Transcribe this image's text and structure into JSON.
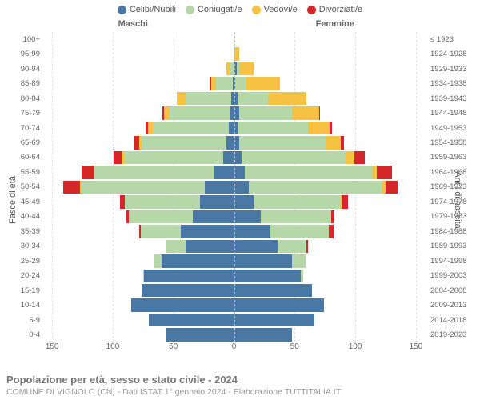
{
  "legend": [
    {
      "label": "Celibi/Nubili",
      "color": "#4a78a5"
    },
    {
      "label": "Coniugati/e",
      "color": "#b6d7a8"
    },
    {
      "label": "Vedovi/e",
      "color": "#f6c244"
    },
    {
      "label": "Divorziati/e",
      "color": "#d62728"
    }
  ],
  "headers": {
    "left": "Maschi",
    "right": "Femmine"
  },
  "axis_titles": {
    "left": "Fasce di età",
    "right": "Anni di nascita"
  },
  "x_axis": {
    "min_abs": 0,
    "max_abs": 160,
    "ticks": [
      150,
      100,
      50,
      0,
      50,
      100,
      150
    ]
  },
  "colors": {
    "celibi": "#4a78a5",
    "coniugati": "#b6d7a8",
    "vedovi": "#f6c244",
    "divorziati": "#d62728",
    "grid": "#e3e3e3",
    "center": "#bbbbbb",
    "bg": "#ffffff"
  },
  "rows": [
    {
      "age": "100+",
      "birth": "≤ 1923",
      "m": {
        "c": 0,
        "co": 0,
        "v": 0,
        "d": 0
      },
      "f": {
        "c": 0,
        "co": 0,
        "v": 0,
        "d": 0
      }
    },
    {
      "age": "95-99",
      "birth": "1924-1928",
      "m": {
        "c": 0,
        "co": 0,
        "v": 0,
        "d": 0
      },
      "f": {
        "c": 0,
        "co": 0,
        "v": 4,
        "d": 0
      }
    },
    {
      "age": "90-94",
      "birth": "1929-1933",
      "m": {
        "c": 0,
        "co": 3,
        "v": 3,
        "d": 0
      },
      "f": {
        "c": 2,
        "co": 2,
        "v": 12,
        "d": 0
      }
    },
    {
      "age": "85-89",
      "birth": "1934-1938",
      "m": {
        "c": 1,
        "co": 14,
        "v": 4,
        "d": 1
      },
      "f": {
        "c": 1,
        "co": 9,
        "v": 28,
        "d": 0
      }
    },
    {
      "age": "80-84",
      "birth": "1939-1943",
      "m": {
        "c": 2,
        "co": 38,
        "v": 7,
        "d": 0
      },
      "f": {
        "c": 3,
        "co": 25,
        "v": 32,
        "d": 0
      }
    },
    {
      "age": "75-79",
      "birth": "1944-1948",
      "m": {
        "c": 3,
        "co": 50,
        "v": 5,
        "d": 1
      },
      "f": {
        "c": 4,
        "co": 44,
        "v": 22,
        "d": 1
      }
    },
    {
      "age": "70-74",
      "birth": "1949-1953",
      "m": {
        "c": 4,
        "co": 63,
        "v": 4,
        "d": 2
      },
      "f": {
        "c": 3,
        "co": 58,
        "v": 18,
        "d": 2
      }
    },
    {
      "age": "65-69",
      "birth": "1954-1958",
      "m": {
        "c": 6,
        "co": 70,
        "v": 2,
        "d": 4
      },
      "f": {
        "c": 4,
        "co": 72,
        "v": 12,
        "d": 3
      }
    },
    {
      "age": "60-64",
      "birth": "1959-1963",
      "m": {
        "c": 9,
        "co": 82,
        "v": 2,
        "d": 6
      },
      "f": {
        "c": 6,
        "co": 86,
        "v": 7,
        "d": 9
      }
    },
    {
      "age": "55-59",
      "birth": "1964-1968",
      "m": {
        "c": 17,
        "co": 98,
        "v": 1,
        "d": 10
      },
      "f": {
        "c": 9,
        "co": 105,
        "v": 4,
        "d": 12
      }
    },
    {
      "age": "50-54",
      "birth": "1969-1973",
      "m": {
        "c": 24,
        "co": 102,
        "v": 1,
        "d": 14
      },
      "f": {
        "c": 12,
        "co": 110,
        "v": 3,
        "d": 10
      }
    },
    {
      "age": "45-49",
      "birth": "1974-1978",
      "m": {
        "c": 28,
        "co": 62,
        "v": 0,
        "d": 4
      },
      "f": {
        "c": 16,
        "co": 72,
        "v": 1,
        "d": 5
      }
    },
    {
      "age": "40-44",
      "birth": "1979-1983",
      "m": {
        "c": 34,
        "co": 53,
        "v": 0,
        "d": 2
      },
      "f": {
        "c": 22,
        "co": 58,
        "v": 0,
        "d": 3
      }
    },
    {
      "age": "35-39",
      "birth": "1984-1988",
      "m": {
        "c": 44,
        "co": 33,
        "v": 0,
        "d": 1
      },
      "f": {
        "c": 30,
        "co": 48,
        "v": 0,
        "d": 4
      }
    },
    {
      "age": "30-34",
      "birth": "1989-1993",
      "m": {
        "c": 40,
        "co": 16,
        "v": 0,
        "d": 0
      },
      "f": {
        "c": 36,
        "co": 24,
        "v": 0,
        "d": 1
      }
    },
    {
      "age": "25-29",
      "birth": "1994-1998",
      "m": {
        "c": 60,
        "co": 6,
        "v": 0,
        "d": 0
      },
      "f": {
        "c": 48,
        "co": 11,
        "v": 0,
        "d": 0
      }
    },
    {
      "age": "20-24",
      "birth": "1999-2003",
      "m": {
        "c": 74,
        "co": 1,
        "v": 0,
        "d": 0
      },
      "f": {
        "c": 55,
        "co": 2,
        "v": 0,
        "d": 0
      }
    },
    {
      "age": "15-19",
      "birth": "2004-2008",
      "m": {
        "c": 76,
        "co": 0,
        "v": 0,
        "d": 0
      },
      "f": {
        "c": 64,
        "co": 0,
        "v": 0,
        "d": 0
      }
    },
    {
      "age": "10-14",
      "birth": "2009-2013",
      "m": {
        "c": 85,
        "co": 0,
        "v": 0,
        "d": 0
      },
      "f": {
        "c": 74,
        "co": 0,
        "v": 0,
        "d": 0
      }
    },
    {
      "age": "5-9",
      "birth": "2014-2018",
      "m": {
        "c": 70,
        "co": 0,
        "v": 0,
        "d": 0
      },
      "f": {
        "c": 66,
        "co": 0,
        "v": 0,
        "d": 0
      }
    },
    {
      "age": "0-4",
      "birth": "2019-2023",
      "m": {
        "c": 56,
        "co": 0,
        "v": 0,
        "d": 0
      },
      "f": {
        "c": 48,
        "co": 0,
        "v": 0,
        "d": 0
      }
    }
  ],
  "footer": {
    "title": "Popolazione per età, sesso e stato civile - 2024",
    "sub": "COMUNE DI VIGNOLO (CN) - Dati ISTAT 1° gennaio 2024 - Elaborazione TUTTITALIA.IT"
  }
}
